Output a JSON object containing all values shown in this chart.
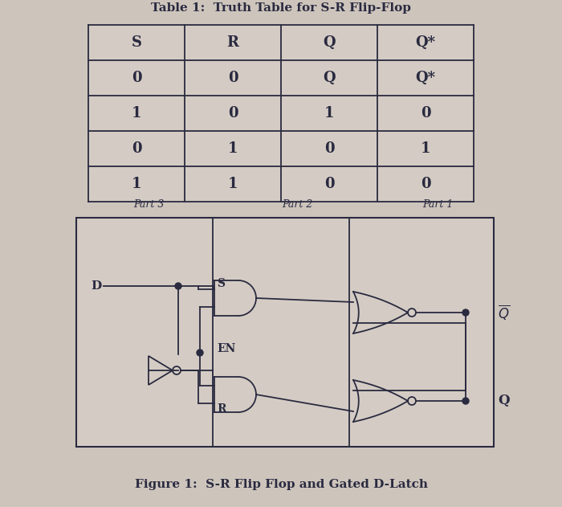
{
  "title_table": "Table 1:  Truth Table for S-R Flip-Flop",
  "table_headers": [
    "S",
    "R",
    "Q",
    "Q*"
  ],
  "table_rows": [
    [
      "0",
      "0",
      "Q",
      "Q*"
    ],
    [
      "1",
      "0",
      "1",
      "0"
    ],
    [
      "0",
      "1",
      "0",
      "1"
    ],
    [
      "1",
      "1",
      "0",
      "0"
    ]
  ],
  "fig_caption": "Figure 1:  S-R Flip Flop and Gated D-Latch",
  "part_labels": [
    "Part 3",
    "Part 2",
    "Part 1"
  ],
  "bg_color": "#cdc5bc",
  "circuit_bg": "#d4ccc4",
  "table_bg": "#d4ccc4",
  "text_color": "#2a2a40",
  "line_color": "#2a2a40"
}
